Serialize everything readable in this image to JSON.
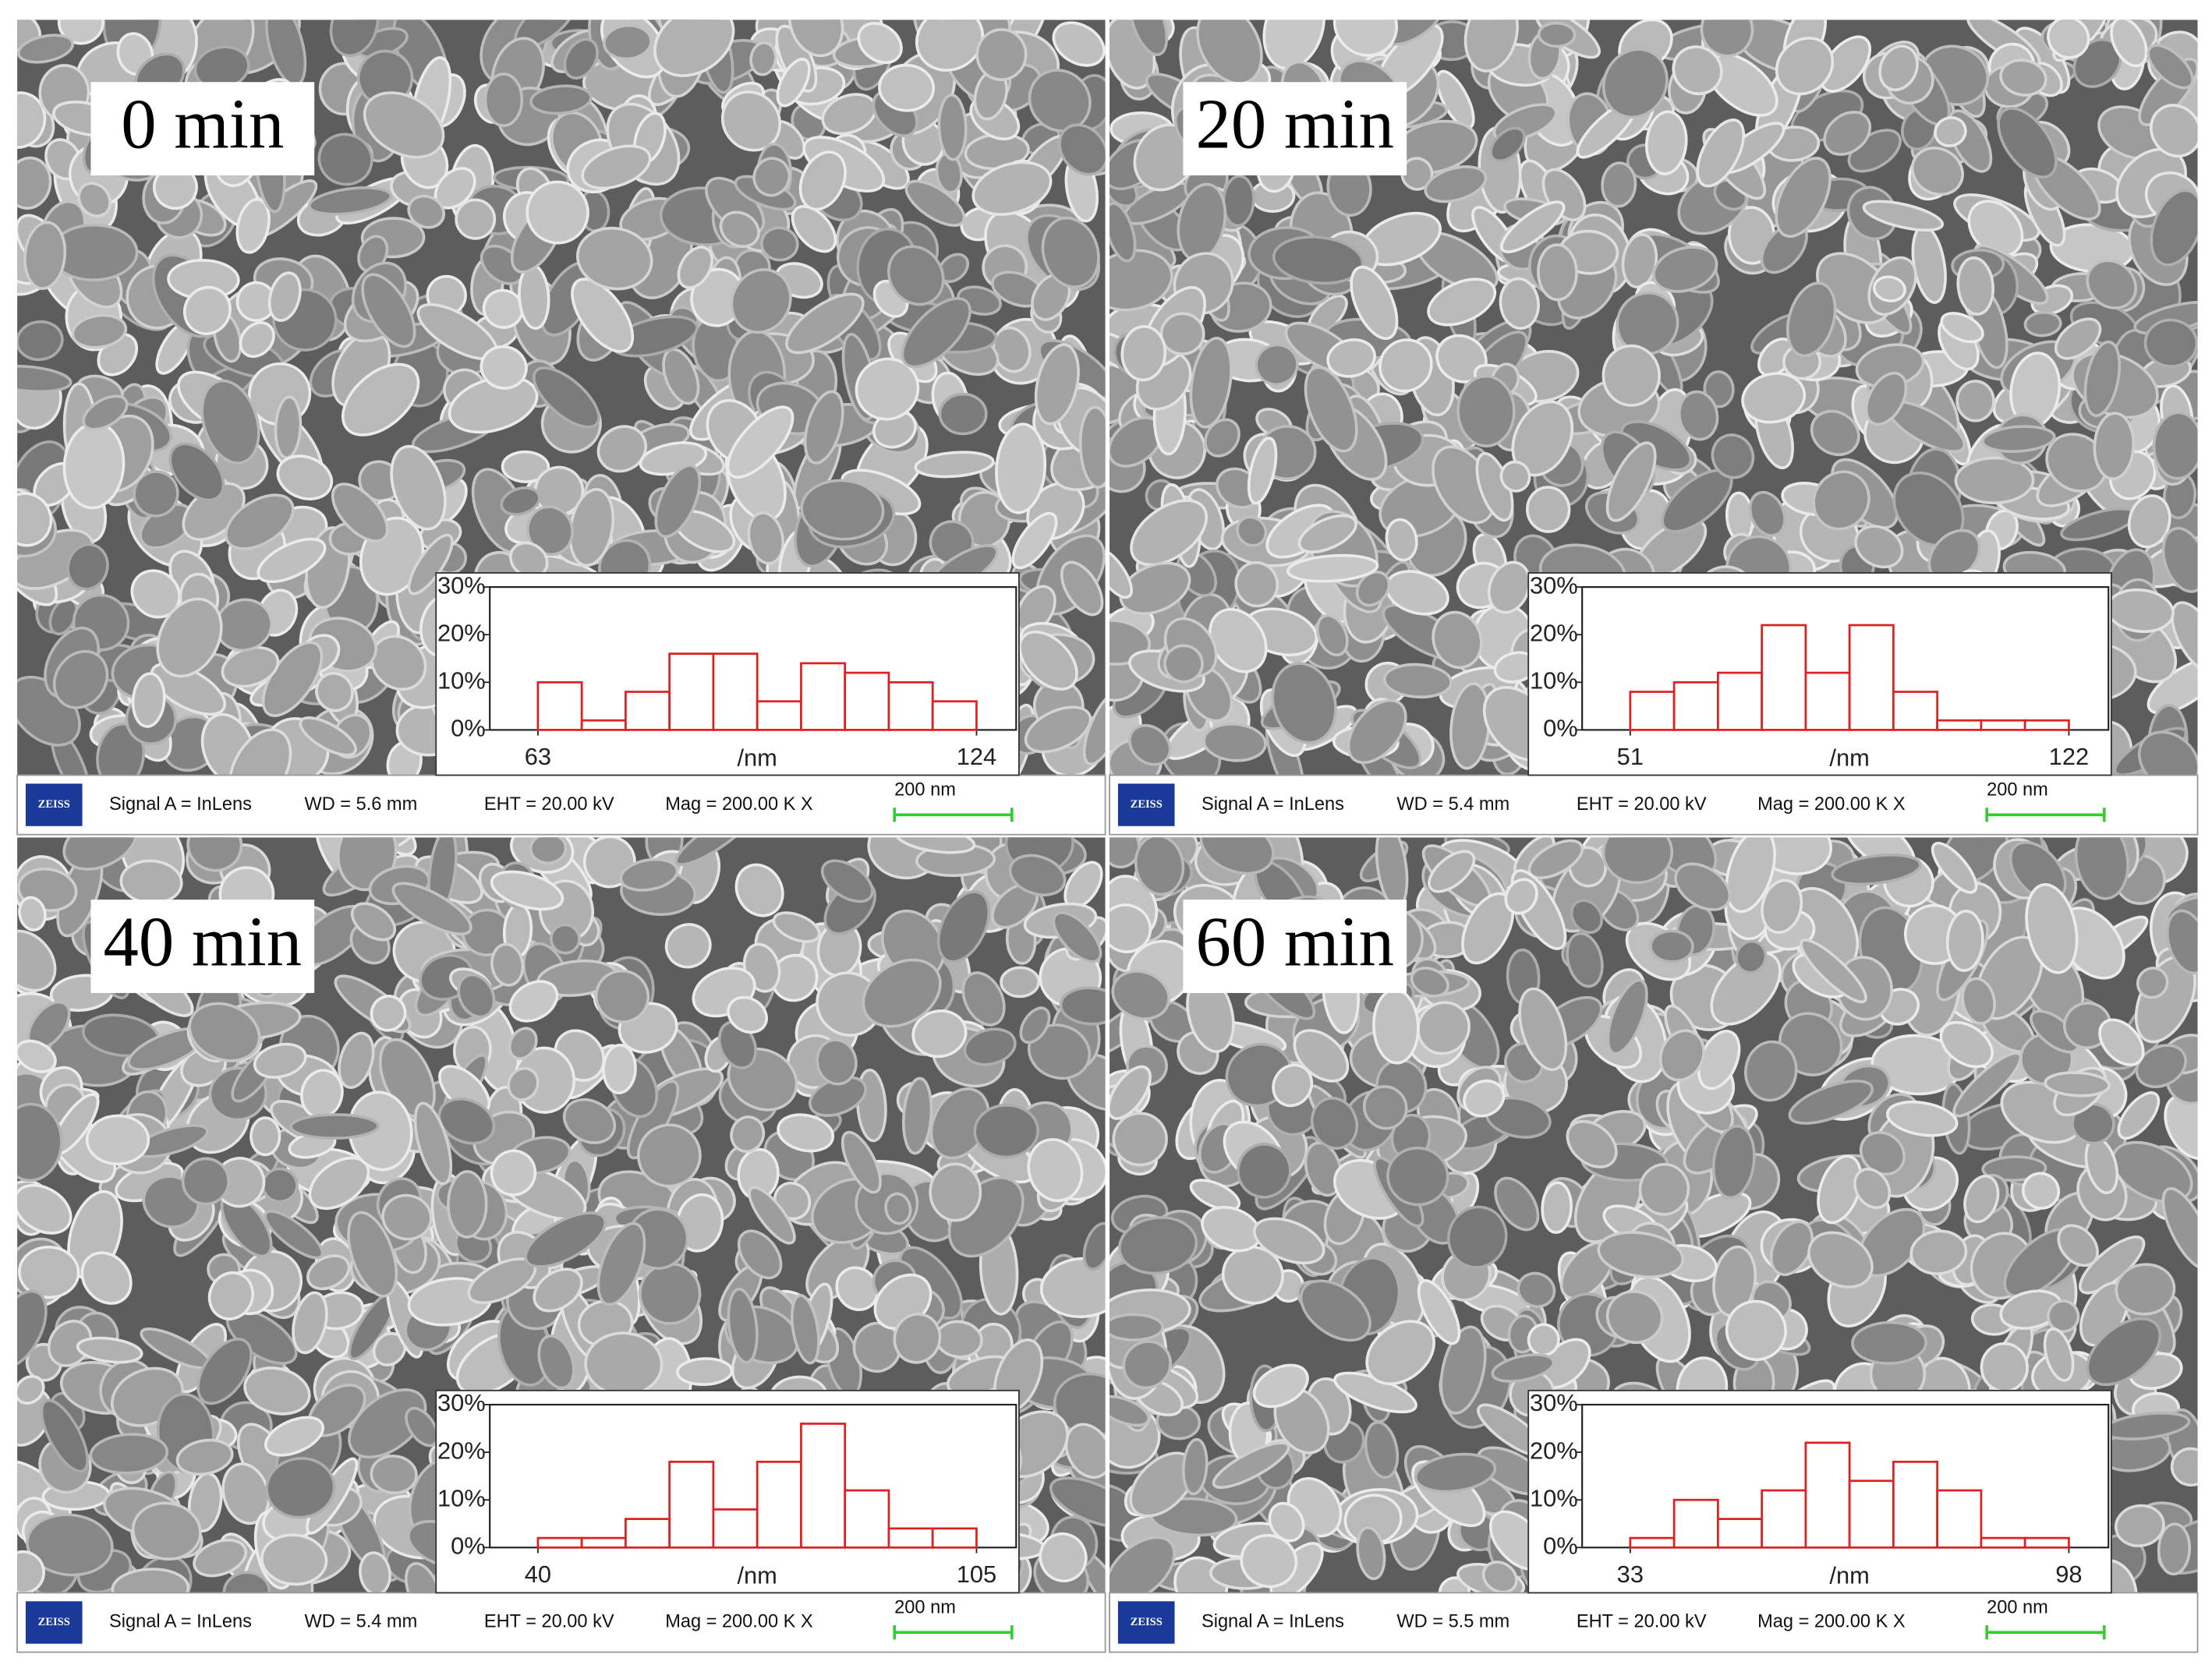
{
  "chart_data": [
    {
      "type": "histogram",
      "panel_label": "0 min",
      "color": "#e02020",
      "bins": [
        63,
        69.1,
        75.2,
        81.3,
        87.4,
        93.5,
        99.6,
        105.7,
        111.8,
        117.9,
        124
      ],
      "values": [
        10,
        2,
        8,
        16,
        16,
        6,
        14,
        12,
        10,
        6
      ],
      "xticks": [
        63,
        124
      ],
      "x_label": "/nm",
      "ylim": [
        0,
        30
      ],
      "yticks": [
        {
          "value": 0,
          "label": "0%"
        },
        {
          "value": 10,
          "label": "10%"
        },
        {
          "value": 20,
          "label": "20%"
        },
        {
          "value": 30,
          "label": "30%"
        }
      ],
      "info": {
        "logo": "ZEISS",
        "signal": "Signal A = InLens",
        "wd": "WD =  5.6 mm",
        "eht": "EHT = 20.00 kV",
        "mag": "Mag = 200.00 K X",
        "scale_bar": "200 nm"
      }
    },
    {
      "type": "histogram",
      "panel_label": "20 min",
      "color": "#e02020",
      "bins": [
        51,
        58.1,
        65.2,
        72.3,
        79.4,
        86.5,
        93.6,
        100.7,
        107.8,
        114.9,
        122
      ],
      "values": [
        8,
        10,
        12,
        22,
        12,
        22,
        8,
        2,
        2,
        2
      ],
      "xticks": [
        51,
        122
      ],
      "x_label": "/nm",
      "ylim": [
        0,
        30
      ],
      "yticks": [
        {
          "value": 0,
          "label": "0%"
        },
        {
          "value": 10,
          "label": "10%"
        },
        {
          "value": 20,
          "label": "20%"
        },
        {
          "value": 30,
          "label": "30%"
        }
      ],
      "info": {
        "logo": "ZEISS",
        "signal": "Signal A = InLens",
        "wd": "WD =  5.4 mm",
        "eht": "EHT = 20.00 kV",
        "mag": "Mag = 200.00 K X",
        "scale_bar": "200 nm"
      }
    },
    {
      "type": "histogram",
      "panel_label": "40 min",
      "color": "#e02020",
      "bins": [
        40,
        46.5,
        53,
        59.5,
        66,
        72.5,
        79,
        85.5,
        92,
        98.5,
        105
      ],
      "values": [
        2,
        2,
        6,
        18,
        8,
        18,
        26,
        12,
        4,
        4
      ],
      "xticks": [
        40,
        105
      ],
      "x_label": "/nm",
      "ylim": [
        0,
        30
      ],
      "yticks": [
        {
          "value": 0,
          "label": "0%"
        },
        {
          "value": 10,
          "label": "10%"
        },
        {
          "value": 20,
          "label": "20%"
        },
        {
          "value": 30,
          "label": "30%"
        }
      ],
      "info": {
        "logo": "ZEISS",
        "signal": "Signal A = InLens",
        "wd": "WD =  5.4 mm",
        "eht": "EHT = 20.00 kV",
        "mag": "Mag = 200.00 K X",
        "scale_bar": "200 nm"
      }
    },
    {
      "type": "histogram",
      "panel_label": "60 min",
      "color": "#e02020",
      "bins": [
        33,
        39.5,
        46,
        52.5,
        59,
        65.5,
        72,
        78.5,
        85,
        91.5,
        98
      ],
      "values": [
        2,
        10,
        6,
        12,
        22,
        14,
        18,
        12,
        2,
        2
      ],
      "xticks": [
        33,
        98
      ],
      "x_label": "/nm",
      "ylim": [
        0,
        30
      ],
      "yticks": [
        {
          "value": 0,
          "label": "0%"
        },
        {
          "value": 10,
          "label": "10%"
        },
        {
          "value": 20,
          "label": "20%"
        },
        {
          "value": 30,
          "label": "30%"
        }
      ],
      "info": {
        "logo": "ZEISS",
        "signal": "Signal A = InLens",
        "wd": "WD =  5.5 mm",
        "eht": "EHT = 20.00 kV",
        "mag": "Mag = 200.00 K X",
        "scale_bar": "200 nm"
      }
    }
  ]
}
